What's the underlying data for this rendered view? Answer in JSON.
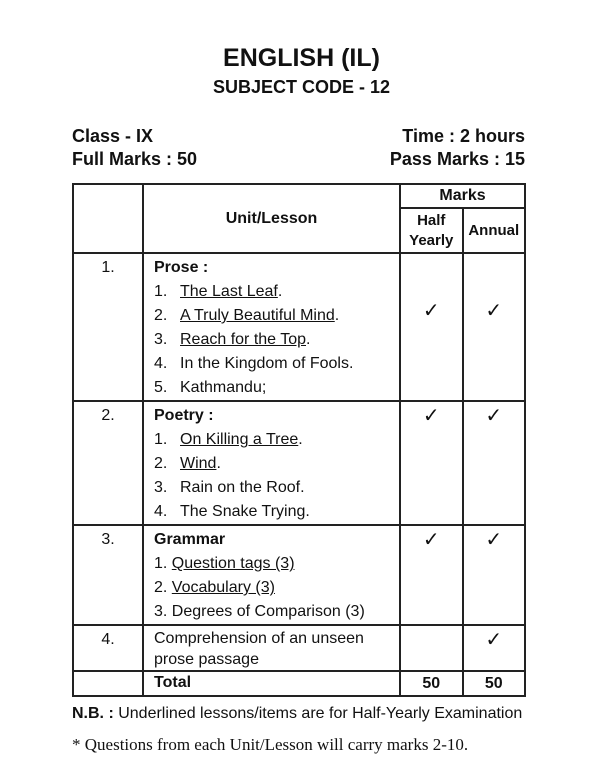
{
  "header": {
    "title": "ENGLISH (IL)",
    "subject_code": "SUBJECT CODE - 12",
    "class": "Class - IX",
    "time": "Time : 2 hours",
    "full_marks": "Full Marks : 50",
    "pass_marks": "Pass Marks : 15"
  },
  "table": {
    "col_unit": "Unit/Lesson",
    "col_marks": "Marks",
    "col_half": "Half Yearly",
    "col_annual": "Annual",
    "tick": "✓",
    "rows": [
      {
        "sn": "1.",
        "heading": "Prose :",
        "items": [
          {
            "n": "1.",
            "text": "The Last Leaf",
            "u": true,
            "suffix": "."
          },
          {
            "n": "2.",
            "text": "A Truly Beautiful Mind",
            "u": true,
            "suffix": "."
          },
          {
            "n": "3.",
            "text": "Reach for the Top",
            "u": true,
            "suffix": "."
          },
          {
            "n": "4.",
            "text": "In the Kingdom of Fools.",
            "u": false,
            "suffix": ""
          },
          {
            "n": "5.",
            "text": "Kathmandu;",
            "u": false,
            "suffix": ""
          }
        ],
        "half": true,
        "annual": true
      },
      {
        "sn": "2.",
        "heading": "Poetry :",
        "items": [
          {
            "n": "1.",
            "text": "On Killing a Tree",
            "u": true,
            "suffix": "."
          },
          {
            "n": "2.",
            "text": "Wind",
            "u": true,
            "suffix": "."
          },
          {
            "n": "3.",
            "text": "Rain on the Roof.",
            "u": false,
            "suffix": ""
          },
          {
            "n": "4.",
            "text": "The Snake Trying.",
            "u": false,
            "suffix": ""
          }
        ],
        "half": true,
        "annual": true
      },
      {
        "sn": "3.",
        "heading": "Grammar",
        "items": [
          {
            "n": "1.",
            "text": "Question tags (3)",
            "u": true,
            "suffix": ""
          },
          {
            "n": "2.",
            "text": "Vocabulary (3)",
            "u": true,
            "suffix": ""
          },
          {
            "n": "3.",
            "text": "Degrees of Comparison (3)",
            "u": false,
            "suffix": ""
          }
        ],
        "half": true,
        "annual": true
      },
      {
        "sn": "4.",
        "heading": "",
        "text": "Comprehension of an unseen prose passage",
        "items": [],
        "half": false,
        "annual": true
      }
    ],
    "total_label": "Total",
    "total_half": "50",
    "total_annual": "50"
  },
  "nb": {
    "label": "N.B. :",
    "text": " Underlined lessons/items are for Half-Yearly Examination"
  },
  "footnote": "* Questions from each Unit/Lesson will carry marks 2-10."
}
